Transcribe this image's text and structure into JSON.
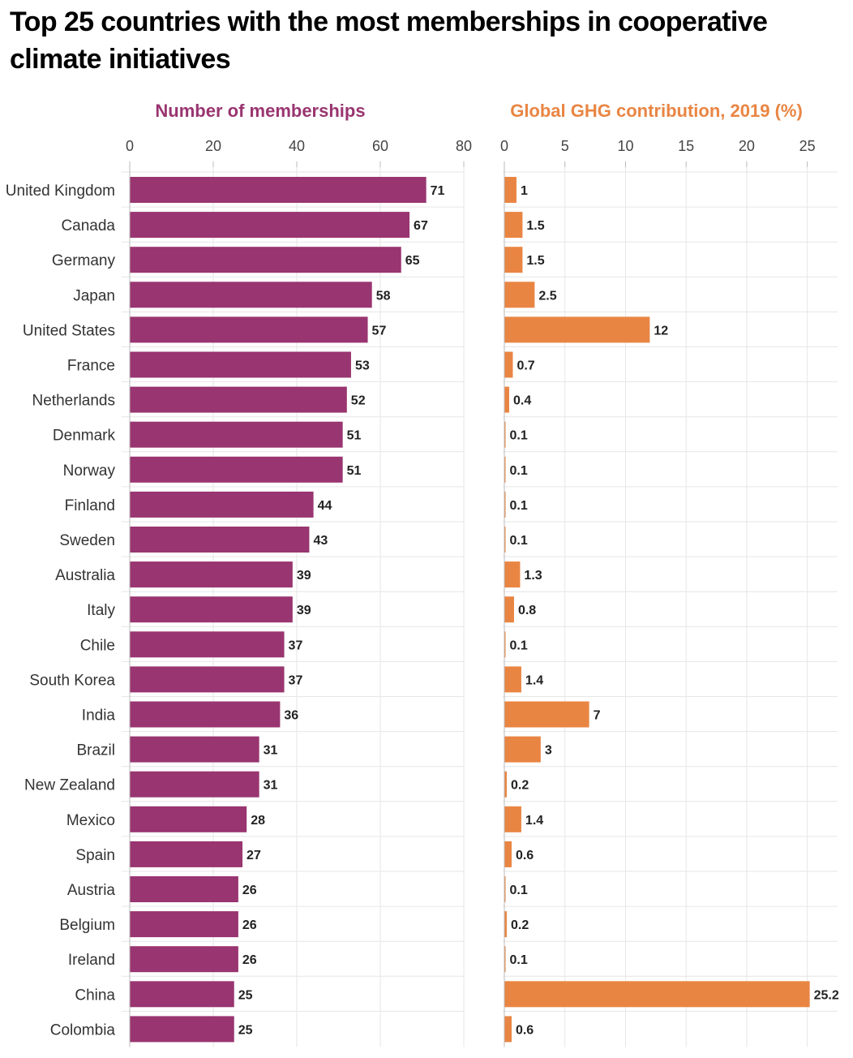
{
  "title": "Top 25 countries with the most memberships in cooperative climate initiatives",
  "colors": {
    "memberships": "#993570",
    "ghg": "#E98543",
    "grid": "#e6e6e6",
    "text": "#333333"
  },
  "chart_data": [
    {
      "type": "bar",
      "orientation": "horizontal",
      "title": "Number of memberships",
      "xlim": [
        0,
        80
      ],
      "ticks": [
        0,
        20,
        40,
        60,
        80
      ],
      "grid": true,
      "categories": [
        "United Kingdom",
        "Canada",
        "Germany",
        "Japan",
        "United States",
        "France",
        "Netherlands",
        "Denmark",
        "Norway",
        "Finland",
        "Sweden",
        "Australia",
        "Italy",
        "Chile",
        "South Korea",
        "India",
        "Brazil",
        "New Zealand",
        "Mexico",
        "Spain",
        "Austria",
        "Belgium",
        "Ireland",
        "China",
        "Colombia"
      ],
      "values": [
        71,
        67,
        65,
        58,
        57,
        53,
        52,
        51,
        51,
        44,
        43,
        39,
        39,
        37,
        37,
        36,
        31,
        31,
        28,
        27,
        26,
        26,
        26,
        25,
        25
      ],
      "value_labels": [
        "71",
        "67",
        "65",
        "58",
        "57",
        "53",
        "52",
        "51",
        "51",
        "44",
        "43",
        "39",
        "39",
        "37",
        "37",
        "36",
        "31",
        "31",
        "28",
        "27",
        "26",
        "26",
        "26",
        "25",
        "25"
      ]
    },
    {
      "type": "bar",
      "orientation": "horizontal",
      "title": "Global GHG contribution, 2019 (%)",
      "xlim": [
        0,
        27.5
      ],
      "ticks": [
        0,
        5,
        10,
        15,
        20,
        25
      ],
      "grid": true,
      "categories": [
        "United Kingdom",
        "Canada",
        "Germany",
        "Japan",
        "United States",
        "France",
        "Netherlands",
        "Denmark",
        "Norway",
        "Finland",
        "Sweden",
        "Australia",
        "Italy",
        "Chile",
        "South Korea",
        "India",
        "Brazil",
        "New Zealand",
        "Mexico",
        "Spain",
        "Austria",
        "Belgium",
        "Ireland",
        "China",
        "Colombia"
      ],
      "values": [
        1,
        1.5,
        1.5,
        2.5,
        12,
        0.7,
        0.4,
        0.1,
        0.1,
        0.1,
        0.1,
        1.3,
        0.8,
        0.1,
        1.4,
        7,
        3,
        0.2,
        1.4,
        0.6,
        0.1,
        0.2,
        0.1,
        25.2,
        0.6
      ],
      "value_labels": [
        "1",
        "1.5",
        "1.5",
        "2.5",
        "12",
        "0.7",
        "0.4",
        "0.1",
        "0.1",
        "0.1",
        "0.1",
        "1.3",
        "0.8",
        "0.1",
        "1.4",
        "7",
        "3",
        "0.2",
        "1.4",
        "0.6",
        "0.1",
        "0.2",
        "0.1",
        "25.2",
        "0.6"
      ]
    }
  ]
}
